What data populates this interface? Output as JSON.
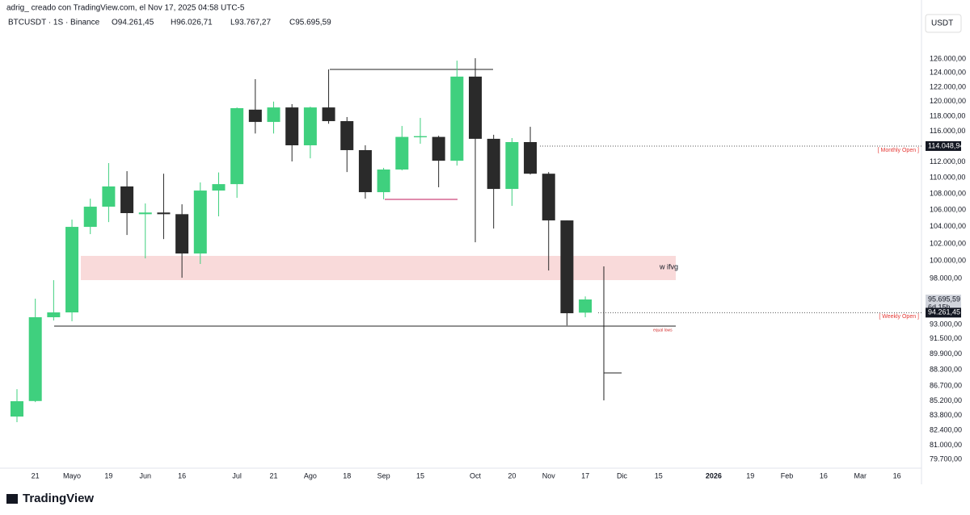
{
  "header": {
    "credit": "adrig_ creado con TradingView.com, el Nov 17, 2025 04:58 UTC-5",
    "symbol": "BTCUSDT · 1S · Binance",
    "ohlc": [
      "O94.261,45",
      "H96.026,71",
      "L93.767,27",
      "C95.695,59"
    ],
    "currency": "USDT"
  },
  "footer": {
    "brand": "TradingView"
  },
  "chart_data": {
    "type": "candlestick",
    "log_scale": true,
    "up_color": "#3fd07e",
    "down_color": "#2a2a2a",
    "categories": [
      null,
      "21",
      null,
      "Mayo",
      null,
      "19",
      null,
      "Jun",
      null,
      "16",
      null,
      null,
      "Jul",
      null,
      "21",
      null,
      "Ago",
      null,
      "18",
      null,
      "Sep",
      null,
      "15",
      null,
      null,
      "Oct",
      null,
      "20",
      null,
      "Nov",
      null,
      "17",
      null,
      "Dic",
      null,
      "15",
      null,
      null,
      "2026",
      null,
      "19",
      null,
      "Feb",
      null,
      "16",
      null,
      "Mar",
      null,
      "16"
    ],
    "open": [
      83700,
      85200,
      93770,
      94290,
      103980,
      106410,
      108900,
      105500,
      105700,
      105500,
      100860,
      108390,
      109190,
      118900,
      117240,
      119200,
      114150,
      119200,
      117350,
      113520,
      108190,
      111030,
      115200,
      115250,
      112150,
      123480,
      115000,
      108590,
      114570,
      110500,
      104750,
      94261.45,
      null,
      null,
      null,
      null,
      null,
      null,
      null,
      null,
      null,
      null,
      null,
      null,
      null,
      null,
      null,
      null,
      null
    ],
    "high": [
      86360,
      95780,
      97830,
      104850,
      107390,
      111850,
      110820,
      106800,
      110500,
      106700,
      109400,
      110660,
      119200,
      123120,
      120000,
      119650,
      119300,
      124500,
      117900,
      114150,
      111240,
      116700,
      117780,
      115400,
      125760,
      126110,
      115530,
      115100,
      116590,
      110710,
      104750,
      96026.71,
      null,
      null,
      null,
      null,
      null,
      null,
      null,
      null,
      null,
      null,
      null,
      null,
      null,
      null,
      null,
      null,
      null
    ],
    "low": [
      83160,
      85100,
      93420,
      93340,
      103120,
      104550,
      103020,
      100300,
      102540,
      98100,
      99660,
      105240,
      107490,
      115700,
      115700,
      112060,
      112460,
      117000,
      110710,
      107390,
      107310,
      110920,
      114350,
      108800,
      111530,
      102170,
      103780,
      106510,
      110400,
      98920,
      92900,
      93767.27,
      null,
      null,
      null,
      null,
      null,
      null,
      null,
      null,
      null,
      null,
      null,
      null,
      null,
      null,
      null,
      null,
      null
    ],
    "close": [
      85180,
      93770,
      94290,
      103980,
      106410,
      108900,
      105630,
      105700,
      105500,
      100860,
      108390,
      109190,
      119100,
      117240,
      119200,
      114150,
      119200,
      117350,
      113520,
      108190,
      111030,
      115250,
      115350,
      112150,
      123480,
      115000,
      108590,
      114570,
      110500,
      104750,
      94200,
      95695.59,
      null,
      null,
      null,
      null,
      null,
      null,
      null,
      null,
      null,
      null,
      null,
      null,
      null,
      null,
      null,
      null,
      null
    ],
    "ylim": [
      78900,
      129900
    ],
    "yticks": [
      {
        "value": 126000,
        "label": "126.000,00"
      },
      {
        "value": 124000,
        "label": "124.000,00"
      },
      {
        "value": 122000,
        "label": "122.000,00"
      },
      {
        "value": 120000,
        "label": "120.000,00"
      },
      {
        "value": 118000,
        "label": "118.000,00"
      },
      {
        "value": 116000,
        "label": "116.000,00"
      },
      {
        "value": 112000,
        "label": "112.000,00"
      },
      {
        "value": 110000,
        "label": "110.000,00"
      },
      {
        "value": 108000,
        "label": "108.000,00"
      },
      {
        "value": 106000,
        "label": "106.000,00"
      },
      {
        "value": 104000,
        "label": "104.000,00"
      },
      {
        "value": 102000,
        "label": "102.000,00"
      },
      {
        "value": 100000,
        "label": "100.000,00"
      },
      {
        "value": 98000,
        "label": "98.000,00"
      },
      {
        "value": 93000,
        "label": "93.000,00"
      },
      {
        "value": 91500,
        "label": "91.500,00"
      },
      {
        "value": 89900,
        "label": "89.900,00"
      },
      {
        "value": 88300,
        "label": "88.300,00"
      },
      {
        "value": 86700,
        "label": "86.700,00"
      },
      {
        "value": 85200,
        "label": "85.200,00"
      },
      {
        "value": 83800,
        "label": "83.800,00"
      },
      {
        "value": 82400,
        "label": "82.400,00"
      },
      {
        "value": 81000,
        "label": "81.000,00"
      },
      {
        "value": 79700,
        "label": "79.700,00"
      }
    ],
    "price_labels": [
      {
        "value": 114048.94,
        "label": "114.048,94",
        "note": "[ Monthly Open ]"
      },
      {
        "value": 95695.59,
        "label": "95.695,59",
        "countdown": "6d 15h"
      },
      {
        "value": 94261.45,
        "label": "94.261,45",
        "note": "[ Weekly Open ]"
      }
    ],
    "annotations": [
      "w ifvg",
      "equal lows"
    ]
  }
}
